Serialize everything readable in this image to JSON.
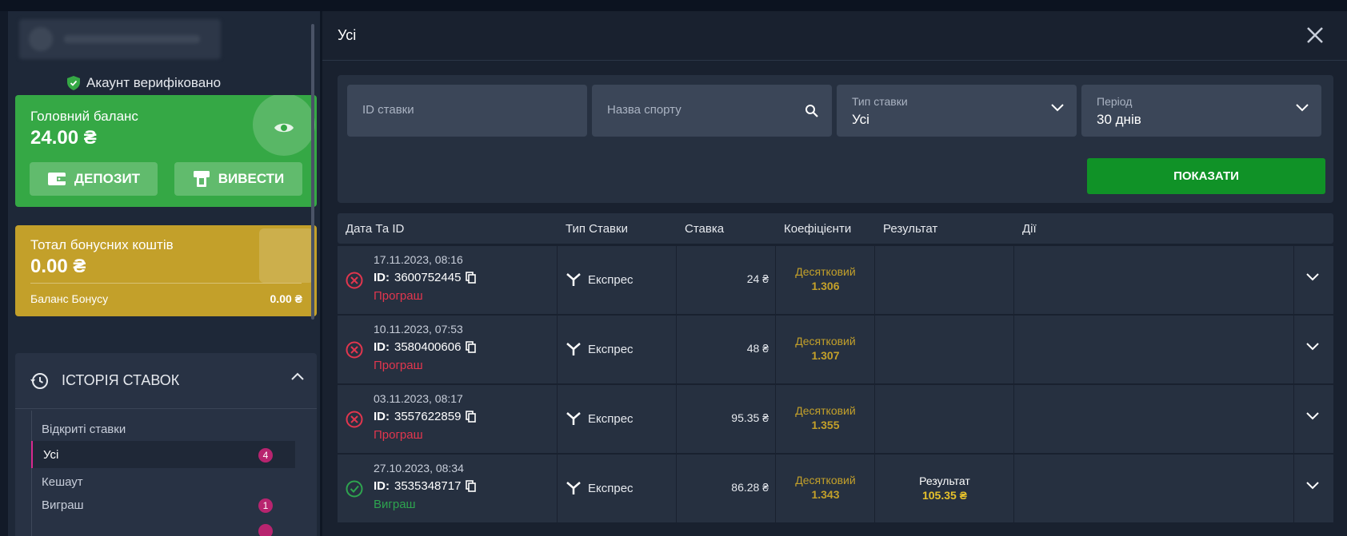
{
  "sidebar": {
    "verified_label": "Акаунт верифіковано",
    "main_balance": {
      "title": "Головний баланс",
      "amount": "24.00 ₴"
    },
    "buttons": {
      "deposit": "ДЕПОЗИТ",
      "withdraw": "ВИВЕСТИ"
    },
    "bonus": {
      "title": "Тотал бонусних коштів",
      "amount": "0.00 ₴",
      "balance_label": "Баланс Бонусу",
      "balance_value": "0.00 ₴"
    },
    "history": {
      "title": "ІСТОРІЯ СТАВОК",
      "group_label": "Відкриті ставки",
      "items": [
        {
          "label": "Усі",
          "count": "4"
        },
        {
          "label": "Кешаут",
          "count": ""
        },
        {
          "label": "Виграш",
          "count": "1"
        }
      ]
    }
  },
  "main": {
    "title": "Усі",
    "filters": {
      "bet_id_placeholder": "ID ставки",
      "sport_placeholder": "Назва спорту",
      "bet_type_label": "Тип ставки",
      "bet_type_value": "Усі",
      "period_label": "Період",
      "period_value": "30 днів",
      "show_button": "ПОКАЗАТИ"
    },
    "table": {
      "headers": [
        "Дата Та ID",
        "Тип Ставки",
        "Ставка",
        "Коефіцієнти",
        "Результат",
        "Дії"
      ],
      "rows": [
        {
          "date": "17.11.2023, 08:16",
          "id_label": "ID:",
          "id": "3600752445",
          "status": "Програш",
          "type": "Експрес",
          "stake": "24 ₴",
          "odds_label": "Десятковий",
          "odds": "1.306",
          "result_label": "",
          "result_value": ""
        },
        {
          "date": "10.11.2023, 07:53",
          "id_label": "ID:",
          "id": "3580400606",
          "status": "Програш",
          "type": "Експрес",
          "stake": "48 ₴",
          "odds_label": "Десятковий",
          "odds": "1.307",
          "result_label": "",
          "result_value": ""
        },
        {
          "date": "03.11.2023, 08:17",
          "id_label": "ID:",
          "id": "3557622859",
          "status": "Програш",
          "type": "Експрес",
          "stake": "95.35 ₴",
          "odds_label": "Десятковий",
          "odds": "1.355",
          "result_label": "",
          "result_value": ""
        },
        {
          "date": "27.10.2023, 08:34",
          "id_label": "ID:",
          "id": "3535348717",
          "status": "Виграш",
          "type": "Експрес",
          "stake": "86.28 ₴",
          "odds_label": "Десятковий",
          "odds": "1.343",
          "result_label": "Результат",
          "result_value": "105.35 ₴"
        }
      ]
    }
  },
  "colors": {
    "main_balance_card": "#35a845",
    "bonus_card": "#c3a02a",
    "show_button": "#109227",
    "lost": "#e2364e",
    "won": "#2ea44f",
    "badge": "#b8246f"
  },
  "icons": {
    "verified": "shield-check-icon",
    "eye": "eye-icon",
    "deposit": "wallet-icon",
    "withdraw": "atm-icon",
    "history": "history-icon",
    "collapse": "chevron-up-icon",
    "close": "close-icon",
    "search": "search-icon",
    "dropdown": "chevron-down-icon",
    "lost": "x-circle-icon",
    "won": "check-circle-icon",
    "copy": "copy-icon",
    "express": "express-icon"
  }
}
